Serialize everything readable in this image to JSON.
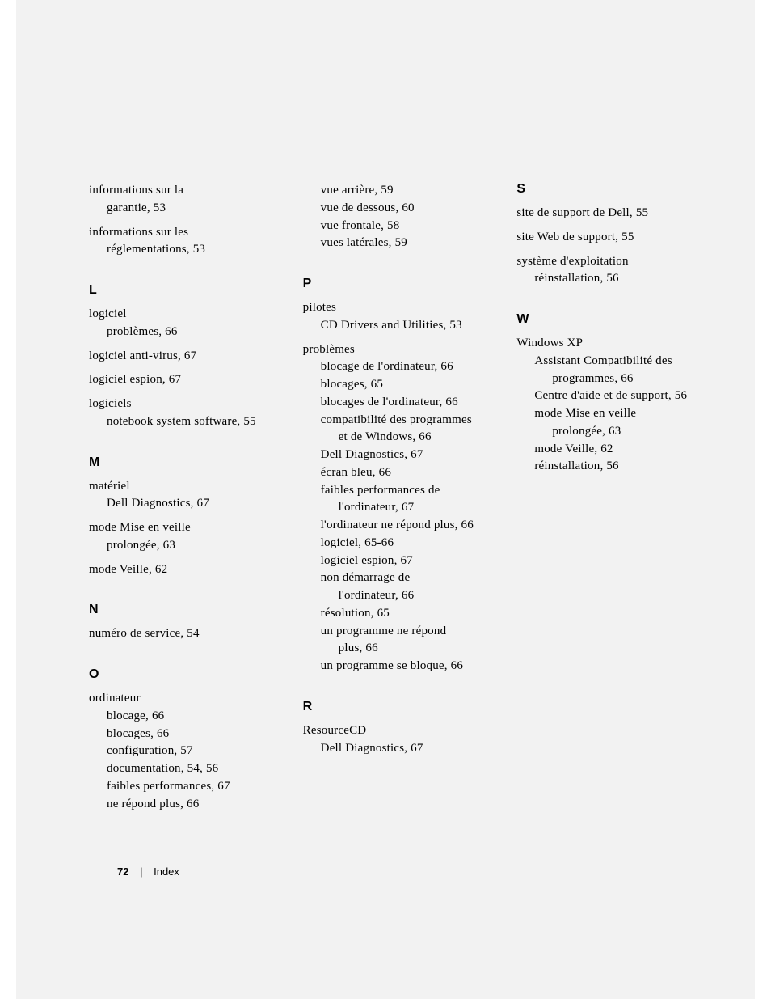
{
  "page": {
    "number": "72",
    "section": "Index"
  },
  "col1": {
    "pre": [
      {
        "main": "informations sur la",
        "subs": [
          "garantie, 53"
        ]
      },
      {
        "main": "informations sur les",
        "subs": [
          "réglementations, 53"
        ]
      }
    ],
    "L": {
      "heading": "L",
      "entries": [
        {
          "main": "logiciel",
          "subs": [
            "problèmes, 66"
          ]
        },
        {
          "main": "logiciel anti-virus, 67",
          "subs": []
        },
        {
          "main": "logiciel espion, 67",
          "subs": []
        },
        {
          "main": "logiciels",
          "subs": [
            "notebook system software, 55"
          ]
        }
      ]
    },
    "M": {
      "heading": "M",
      "entries": [
        {
          "main": "matériel",
          "subs": [
            "Dell Diagnostics, 67"
          ]
        },
        {
          "main": "mode Mise en veille",
          "subs": [
            "prolongée, 63"
          ]
        },
        {
          "main": "mode Veille, 62",
          "subs": []
        }
      ]
    },
    "N": {
      "heading": "N",
      "entries": [
        {
          "main": "numéro de service, 54",
          "subs": []
        }
      ]
    },
    "O": {
      "heading": "O",
      "entries": [
        {
          "main": "ordinateur",
          "subs": [
            "blocage, 66",
            "blocages, 66",
            "configuration, 57",
            "documentation, 54, 56",
            "faibles performances, 67",
            "ne répond plus, 66"
          ]
        }
      ]
    }
  },
  "col2": {
    "pre": [
      "vue arrière, 59",
      "vue de dessous, 60",
      "vue frontale, 58",
      "vues latérales, 59"
    ],
    "P": {
      "heading": "P",
      "entries": [
        {
          "main": "pilotes",
          "subs": [
            "CD Drivers and Utilities, 53"
          ]
        },
        {
          "main": "problèmes",
          "subs": [
            "blocage de l'ordinateur, 66",
            "blocages, 65",
            "blocages de l'ordinateur, 66"
          ],
          "subs_wrap": [
            {
              "l1": "compatibilité des programmes",
              "l2": "et de Windows, 66"
            }
          ],
          "subs2": [
            "Dell Diagnostics, 67",
            "écran bleu, 66"
          ],
          "subs_wrap2": [
            {
              "l1": "faibles performances de",
              "l2": "l'ordinateur, 67"
            }
          ],
          "subs3": [
            "l'ordinateur ne répond plus, 66",
            "logiciel, 65-66",
            "logiciel espion, 67"
          ],
          "subs_wrap3": [
            {
              "l1": "non démarrage de",
              "l2": "l'ordinateur, 66"
            }
          ],
          "subs4": [
            "résolution, 65"
          ],
          "subs_wrap4": [
            {
              "l1": "un programme ne répond",
              "l2": "plus, 66"
            }
          ],
          "subs5": [
            "un programme se bloque, 66"
          ]
        }
      ]
    },
    "R": {
      "heading": "R",
      "entries": [
        {
          "main": "ResourceCD",
          "subs": [
            "Dell Diagnostics, 67"
          ]
        }
      ]
    }
  },
  "col3": {
    "S": {
      "heading": "S",
      "entries": [
        {
          "main": "site de support de Dell, 55",
          "subs": []
        },
        {
          "main": "site Web de support, 55",
          "subs": []
        },
        {
          "main": "système d'exploitation",
          "subs": [
            "réinstallation, 56"
          ]
        }
      ]
    },
    "W": {
      "heading": "W",
      "entries": [
        {
          "main": "Windows XP",
          "subs_wrap": [
            {
              "l1": "Assistant Compatibilité des",
              "l2": "programmes, 66"
            }
          ],
          "subs": [
            "Centre d'aide et de support, 56"
          ],
          "subs_wrap2": [
            {
              "l1": "mode Mise en veille",
              "l2": "prolongée, 63"
            }
          ],
          "subs2": [
            "mode Veille, 62",
            "réinstallation, 56"
          ]
        }
      ]
    }
  }
}
